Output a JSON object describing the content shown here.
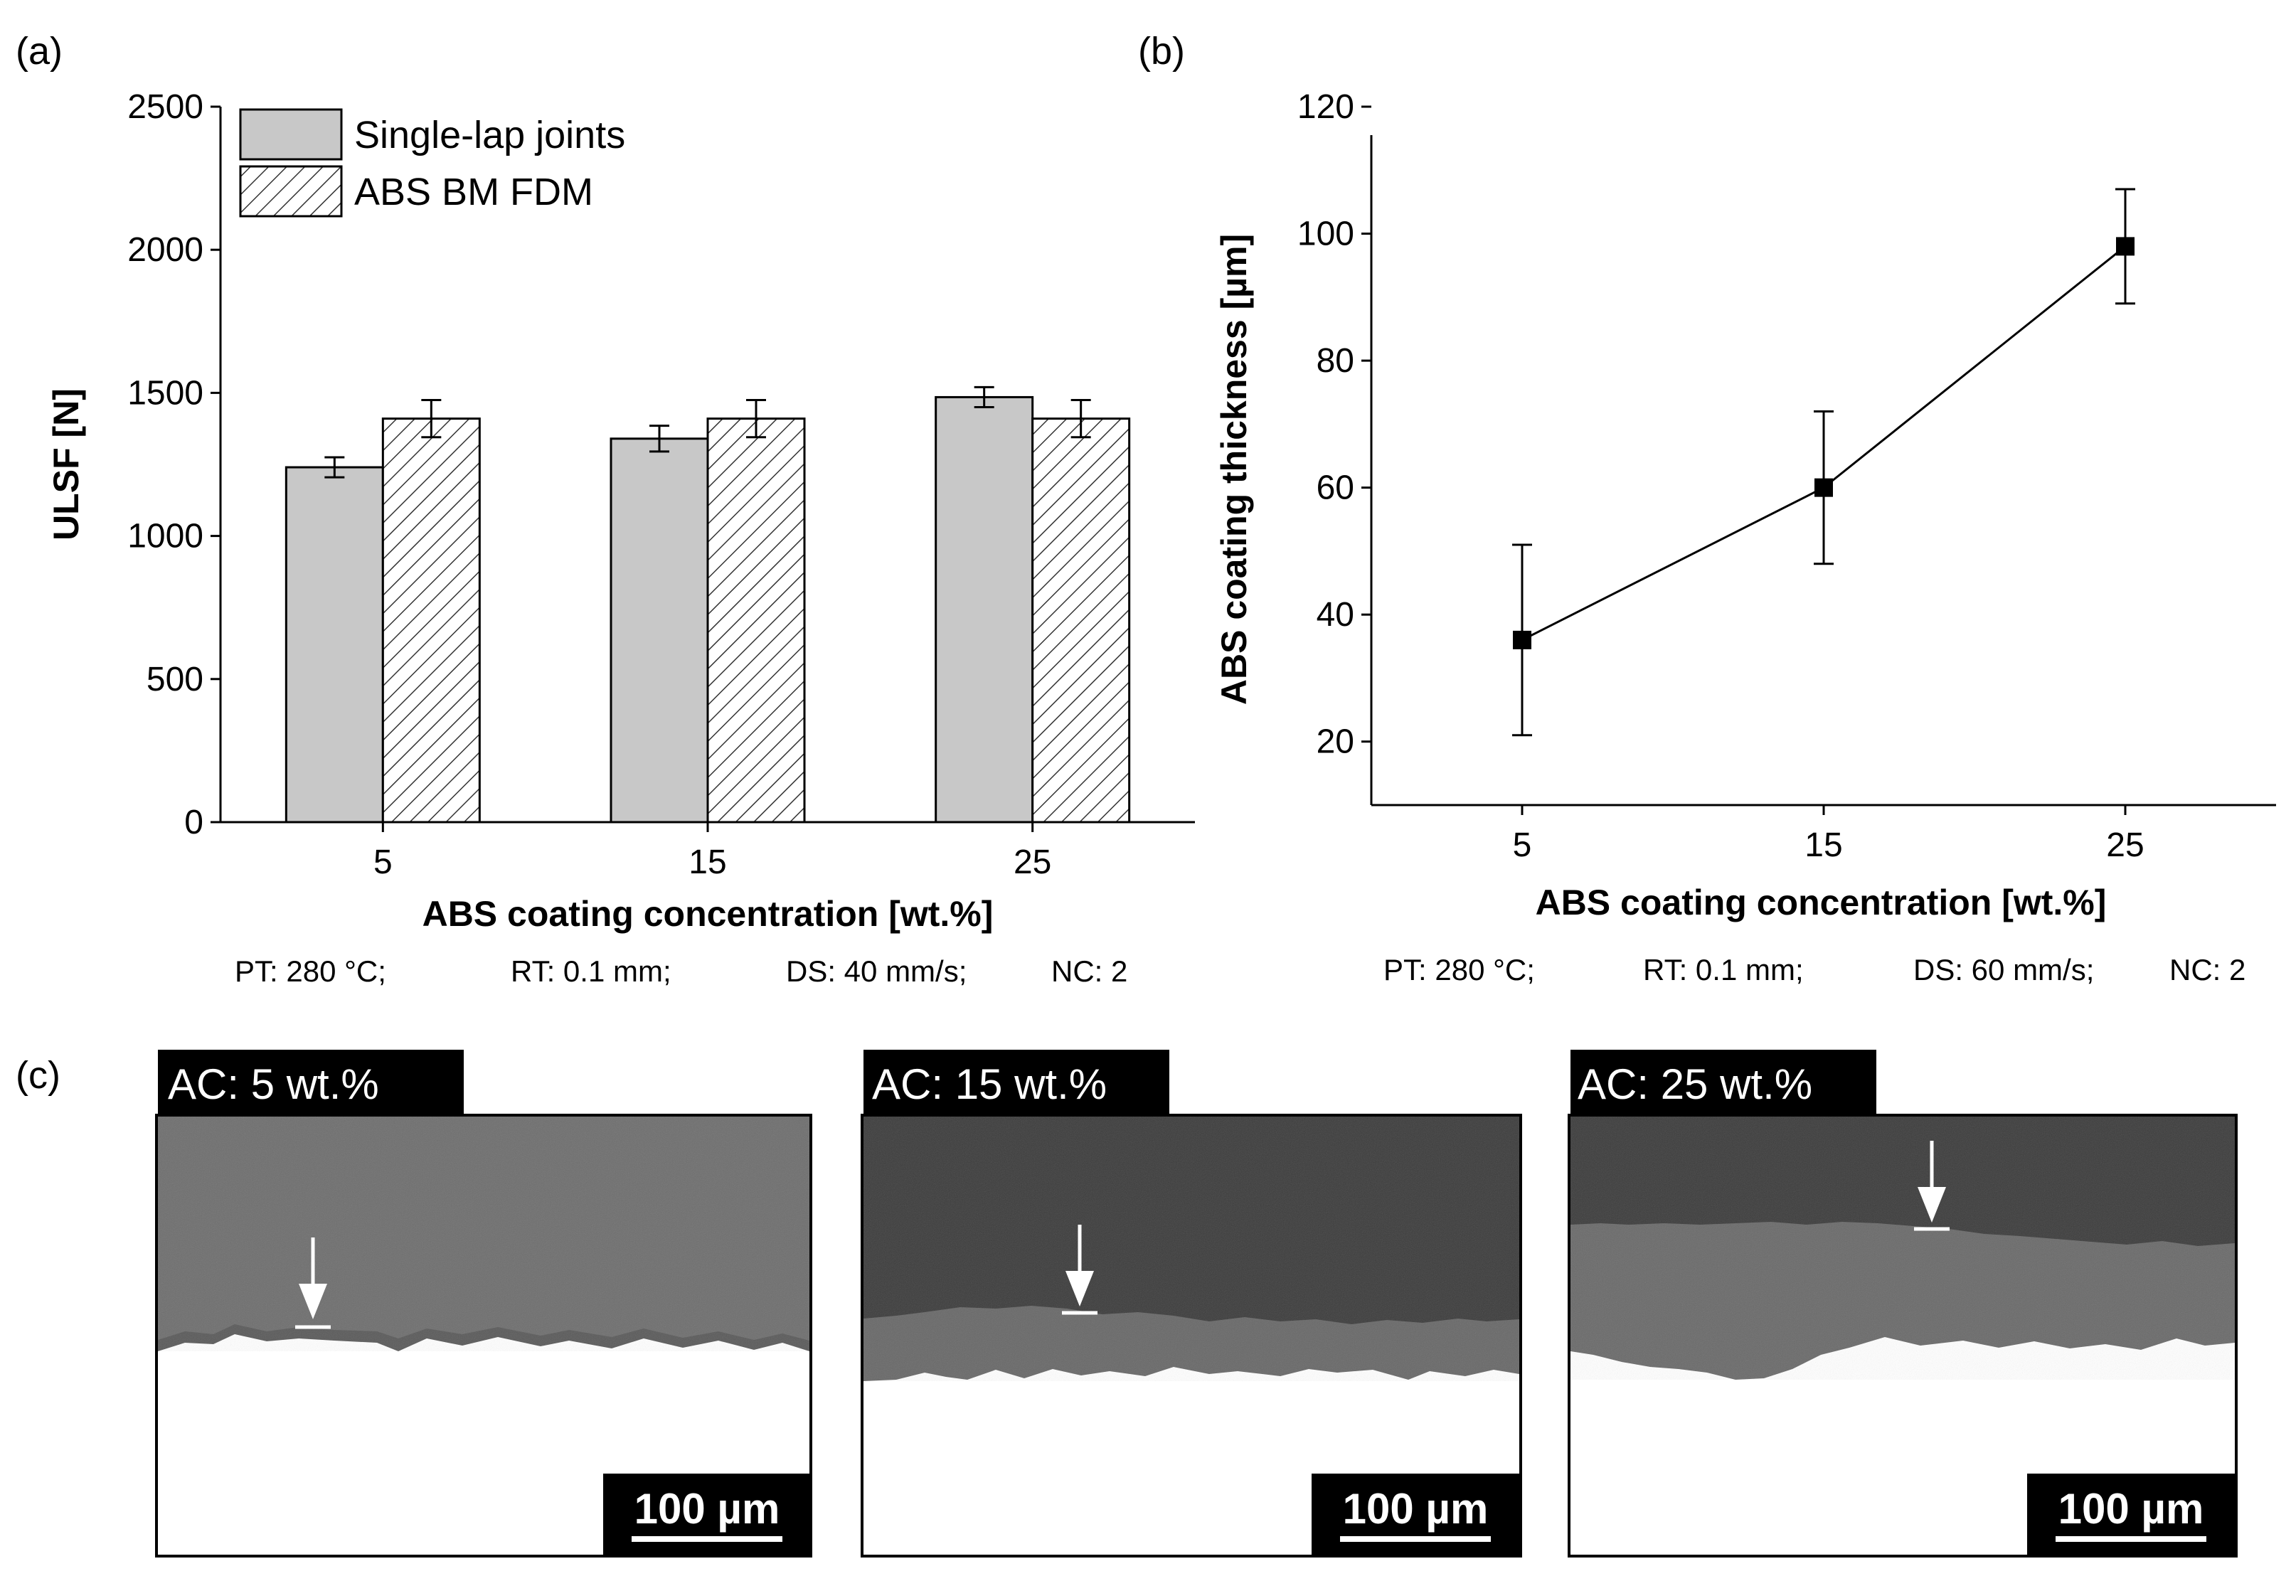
{
  "panels": {
    "a": "(a)",
    "b": "(b)",
    "c": "(c)"
  },
  "colors": {
    "bar_fill": "#c8c8c8",
    "hatch_fill": "#ffffff",
    "line": "#000000"
  },
  "chart_data": [
    {
      "id": "a",
      "type": "bar",
      "title": "",
      "xlabel": "ABS coating concentration [wt.%]",
      "ylabel": "ULSF [N]",
      "categories": [
        "5",
        "15",
        "25"
      ],
      "ylim": [
        0,
        2500
      ],
      "yticks": [
        0,
        500,
        1000,
        1500,
        2000,
        2500
      ],
      "series": [
        {
          "name": "Single-lap joints",
          "pattern": "solid",
          "values": [
            1240,
            1340,
            1485
          ],
          "errors": [
            35,
            45,
            35
          ]
        },
        {
          "name": "ABS BM FDM",
          "pattern": "hatched",
          "values": [
            1410,
            1410,
            1410
          ],
          "errors": [
            65,
            65,
            65
          ]
        }
      ],
      "legend": "top-left",
      "conditions": [
        "PT: 280 °C;",
        "RT: 0.1 mm;",
        "DS: 40 mm/s;",
        "NC: 2"
      ]
    },
    {
      "id": "b",
      "type": "line",
      "title": "",
      "xlabel": "ABS coating concentration [wt.%]",
      "ylabel": "ABS coating thickness [µm]",
      "x": [
        5,
        15,
        25
      ],
      "xtick_labels": [
        "5",
        "15",
        "25"
      ],
      "xlim": [
        0,
        30
      ],
      "y": [
        36,
        60,
        98
      ],
      "errors": [
        15,
        12,
        9
      ],
      "ylim": [
        10,
        120
      ],
      "yticks": [
        20,
        40,
        60,
        80,
        100,
        120
      ],
      "marker": "square",
      "conditions": [
        "PT: 280 °C;",
        "RT: 0.1 mm;",
        "DS: 60 mm/s;",
        "NC: 2"
      ]
    }
  ],
  "micrographs": [
    {
      "label": "AC: 5 wt.%",
      "scale": "100 µm"
    },
    {
      "label": "AC: 15 wt.%",
      "scale": "100 µm"
    },
    {
      "label": "AC: 25 wt.%",
      "scale": "100 µm"
    }
  ]
}
